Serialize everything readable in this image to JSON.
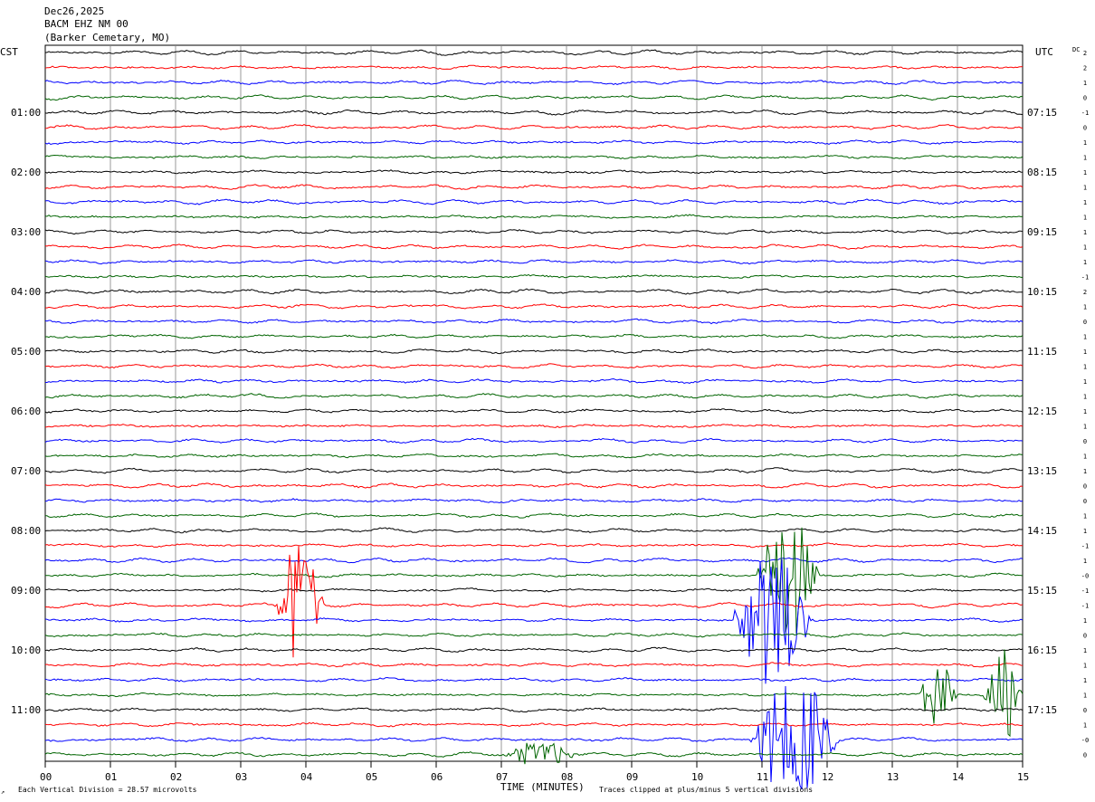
{
  "header": {
    "date": "Dec26,2025",
    "station": "BACM EHZ NM 00",
    "location": "(Barker Cemetary, MO)"
  },
  "left_zone": "CST",
  "right_zone": "UTC",
  "dc_label": "DC",
  "footer": {
    "corner_mark": "↗",
    "scale_note": "Each Vertical Division =   28.57 microvolts",
    "xlabel": "TIME (MINUTES)",
    "clip_note": "Traces clipped at plus/minus 5 vertical divisions"
  },
  "chart_data": {
    "type": "line",
    "title": "BACM EHZ NM 00 (Barker Cemetary, MO) Dec26,2025",
    "xlabel": "TIME (MINUTES)",
    "ylabel": "",
    "x_range": [
      0,
      15
    ],
    "x_ticks": [
      "00",
      "01",
      "02",
      "03",
      "04",
      "05",
      "06",
      "07",
      "08",
      "09",
      "10",
      "11",
      "12",
      "13",
      "14",
      "15"
    ],
    "grid": true,
    "trace_interval_minutes": 15,
    "trace_count": 48,
    "color_cycle": [
      "#000000",
      "#ff0000",
      "#0000ff",
      "#006400"
    ],
    "left_hour_labels": [
      "01:00",
      "02:00",
      "03:00",
      "04:00",
      "05:00",
      "06:00",
      "07:00",
      "08:00",
      "09:00",
      "10:00",
      "11:00"
    ],
    "right_hour_labels": [
      "07:15",
      "08:15",
      "09:15",
      "10:15",
      "11:15",
      "12:15",
      "13:15",
      "14:15",
      "15:15",
      "16:15",
      "17:15"
    ],
    "hour_label_first_trace": 4,
    "dc_offsets": [
      "2",
      "2",
      "1",
      "0",
      "-1",
      "0",
      "1",
      "1",
      "1",
      "1",
      "1",
      "1",
      "1",
      "1",
      "1",
      "-1",
      "2",
      "1",
      "0",
      "1",
      "1",
      "1",
      "1",
      "1",
      "1",
      "1",
      "0",
      "1",
      "1",
      "0",
      "0",
      "1",
      "1",
      "-1",
      "1",
      "-0",
      "-1",
      "-1",
      "1",
      "0",
      "1",
      "1",
      "1",
      "1",
      "0",
      "1",
      "-0",
      "0"
    ],
    "events": [
      {
        "trace": 35,
        "start_min": 10.9,
        "end_min": 11.9,
        "amplitude": 5
      },
      {
        "trace": 37,
        "start_min": 3.5,
        "end_min": 4.3,
        "amplitude": 5
      },
      {
        "trace": 38,
        "start_min": 10.5,
        "end_min": 11.8,
        "amplitude": 5
      },
      {
        "trace": 43,
        "start_min": 13.4,
        "end_min": 14.0,
        "amplitude": 3
      },
      {
        "trace": 43,
        "start_min": 14.4,
        "end_min": 15.0,
        "amplitude": 4
      },
      {
        "trace": 46,
        "start_min": 10.8,
        "end_min": 12.2,
        "amplitude": 5
      },
      {
        "trace": 47,
        "start_min": 7.0,
        "end_min": 8.2,
        "amplitude": 1
      }
    ]
  }
}
